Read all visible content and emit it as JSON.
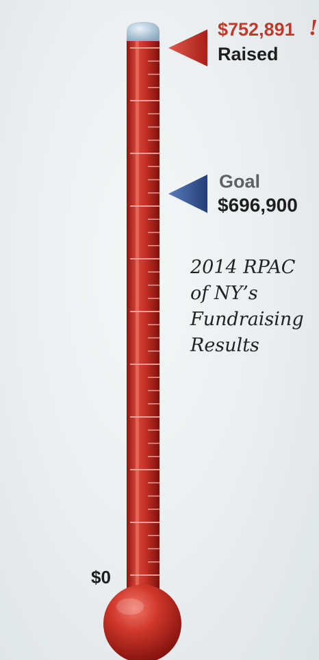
{
  "chart_data": {
    "type": "thermometer",
    "raised": 752891,
    "goal": 696900,
    "min": 0,
    "raised_label": "$752,891",
    "raised_emphasis": "!",
    "raised_caption": "Raised",
    "goal_caption": "Goal",
    "goal_label": "$696,900",
    "min_label": "$0",
    "title_lines": [
      "2014 RPAC",
      "of NY’s",
      "Fundraising",
      "Results"
    ],
    "colors": {
      "mercury": "#c0392b",
      "raised_marker": "#c9362c",
      "goal_marker": "#2e4d8c",
      "raised_text": "#c0392b"
    }
  }
}
